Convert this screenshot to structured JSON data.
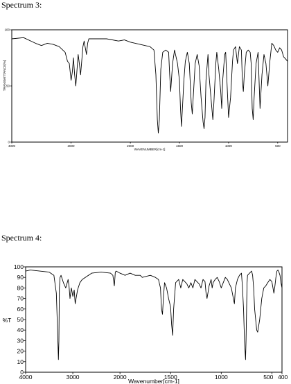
{
  "labels": {
    "spectrum3": "Spectrum 3:",
    "spectrum4": "Spectrum 4:"
  },
  "chart_data": [
    {
      "type": "line",
      "title": "",
      "xlabel": "WAVENUMBER[cm-1]",
      "ylabel": "TRANSMITTANCE[%]",
      "xlim": [
        4000,
        400
      ],
      "ylim": [
        0,
        100
      ],
      "x_ticks": [
        "4000",
        "3000",
        "2000",
        "1500",
        "1000",
        "500"
      ],
      "y_ticks": [
        "100",
        "50",
        "0"
      ],
      "series": [
        {
          "x": [
            4000,
            3800,
            3600,
            3500,
            3400,
            3300,
            3200,
            3100,
            3060,
            3030,
            3000,
            2980,
            2960,
            2940,
            2920,
            2880,
            2860,
            2840,
            2800,
            2780,
            2740,
            2720,
            2700,
            2650,
            2400,
            2200,
            2100,
            2000,
            1900,
            1850,
            1800,
            1760,
            1740,
            1725,
            1715,
            1705,
            1690,
            1670,
            1640,
            1610,
            1600,
            1590,
            1570,
            1550,
            1520,
            1500,
            1490,
            1480,
            1470,
            1455,
            1440,
            1420,
            1400,
            1380,
            1370,
            1340,
            1320,
            1300,
            1280,
            1260,
            1250,
            1240,
            1230,
            1210,
            1200,
            1180,
            1160,
            1150,
            1130,
            1120,
            1100,
            1080,
            1070,
            1060,
            1040,
            1030,
            1020,
            1000,
            980,
            960,
            950,
            930,
            910,
            890,
            870,
            860,
            850,
            840,
            820,
            800,
            780,
            770,
            760,
            750,
            740,
            720,
            700,
            690,
            680,
            660,
            640,
            620,
            600,
            580,
            560,
            540,
            520,
            500,
            480,
            460,
            440,
            420,
            400
          ],
          "y": [
            92,
            93,
            88,
            86,
            88,
            87,
            85,
            80,
            72,
            70,
            55,
            62,
            75,
            60,
            50,
            78,
            70,
            60,
            85,
            90,
            78,
            88,
            92,
            92,
            92,
            90,
            91,
            89,
            87,
            86,
            85,
            82,
            60,
            20,
            8,
            20,
            65,
            80,
            82,
            80,
            60,
            45,
            70,
            82,
            70,
            55,
            30,
            14,
            30,
            55,
            72,
            80,
            70,
            35,
            25,
            70,
            78,
            68,
            40,
            18,
            12,
            22,
            55,
            78,
            60,
            40,
            20,
            35,
            70,
            80,
            65,
            45,
            30,
            55,
            78,
            80,
            60,
            22,
            40,
            72,
            82,
            85,
            70,
            85,
            82,
            55,
            45,
            60,
            80,
            82,
            80,
            70,
            30,
            20,
            40,
            70,
            80,
            55,
            30,
            60,
            78,
            70,
            50,
            72,
            88,
            86,
            82,
            80,
            84,
            82,
            76,
            74,
            72
          ]
        }
      ]
    },
    {
      "type": "line",
      "title": "",
      "xlabel": "Wavenumber[cm-1]",
      "ylabel": "%T",
      "xlim": [
        4000,
        400
      ],
      "ylim": [
        0,
        100
      ],
      "x_ticks": [
        "4000",
        "3000",
        "2000",
        "1500",
        "1000",
        "500",
        "400"
      ],
      "y_ticks": [
        "100",
        "90",
        "80",
        "70",
        "60",
        "50",
        "40",
        "30",
        "20",
        "10",
        "0"
      ],
      "series": [
        {
          "x": [
            4000,
            3900,
            3700,
            3500,
            3400,
            3350,
            3320,
            3305,
            3295,
            3285,
            3270,
            3250,
            3200,
            3150,
            3100,
            3080,
            3060,
            3030,
            3000,
            2970,
            2950,
            2900,
            2850,
            2800,
            2600,
            2400,
            2200,
            2150,
            2120,
            2110,
            2100,
            2080,
            2000,
            1950,
            1900,
            1850,
            1800,
            1780,
            1700,
            1650,
            1620,
            1600,
            1590,
            1580,
            1570,
            1560,
            1540,
            1520,
            1500,
            1490,
            1480,
            1470,
            1450,
            1420,
            1400,
            1380,
            1360,
            1340,
            1320,
            1300,
            1280,
            1260,
            1240,
            1220,
            1200,
            1180,
            1160,
            1150,
            1140,
            1120,
            1100,
            1090,
            1080,
            1060,
            1040,
            1020,
            1000,
            980,
            960,
            940,
            920,
            900,
            880,
            870,
            860,
            840,
            820,
            800,
            790,
            780,
            770,
            760,
            755,
            745,
            740,
            720,
            700,
            690,
            680,
            670,
            660,
            650,
            640,
            620,
            600,
            580,
            560,
            540,
            520,
            500,
            480,
            470,
            460,
            450,
            440,
            430,
            420,
            410,
            400
          ],
          "y": [
            96,
            97,
            96,
            95,
            92,
            75,
            35,
            12,
            30,
            80,
            90,
            92,
            85,
            80,
            88,
            82,
            70,
            80,
            72,
            78,
            65,
            78,
            85,
            88,
            94,
            95,
            94,
            92,
            82,
            88,
            95,
            96,
            94,
            92,
            94,
            92,
            92,
            90,
            92,
            90,
            88,
            80,
            60,
            55,
            72,
            85,
            80,
            70,
            62,
            45,
            35,
            60,
            85,
            88,
            80,
            88,
            86,
            84,
            80,
            85,
            80,
            88,
            86,
            84,
            80,
            88,
            86,
            75,
            70,
            82,
            88,
            80,
            85,
            88,
            90,
            86,
            80,
            85,
            90,
            88,
            84,
            80,
            70,
            65,
            80,
            88,
            92,
            94,
            80,
            60,
            30,
            12,
            30,
            85,
            92,
            94,
            96,
            92,
            80,
            60,
            50,
            40,
            38,
            50,
            70,
            80,
            82,
            85,
            88,
            86,
            75,
            82,
            90,
            96,
            97,
            95,
            92,
            85,
            80
          ]
        }
      ]
    }
  ]
}
